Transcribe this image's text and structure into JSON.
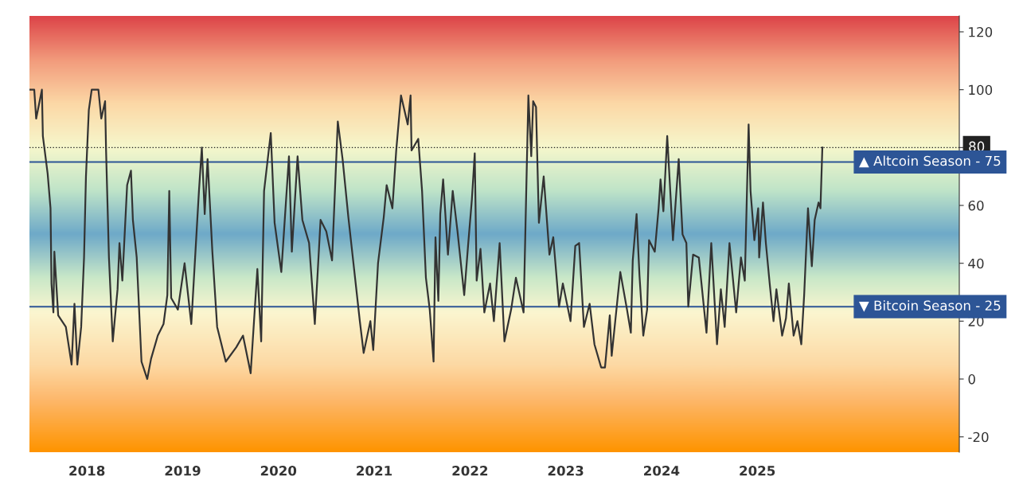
{
  "chart_data": {
    "type": "line",
    "series": [
      {
        "color": "#333333",
        "x": [
          2017.4,
          2017.45,
          2017.47,
          2017.53,
          2017.54,
          2017.59,
          2017.62,
          2017.63,
          2017.65,
          2017.66,
          2017.7,
          2017.78,
          2017.84,
          2017.87,
          2017.9,
          2017.94,
          2017.97,
          2017.99,
          2018.02,
          2018.05,
          2018.12,
          2018.15,
          2018.19,
          2018.2,
          2018.23,
          2018.27,
          2018.32,
          2018.34,
          2018.37,
          2018.42,
          2018.46,
          2018.48,
          2018.52,
          2018.57,
          2018.63,
          2018.67,
          2018.74,
          2018.8,
          2018.84,
          2018.86,
          2018.88,
          2018.95,
          2019.02,
          2019.09,
          2019.13,
          2019.17,
          2019.2,
          2019.23,
          2019.26,
          2019.31,
          2019.36,
          2019.45,
          2019.56,
          2019.63,
          2019.71,
          2019.78,
          2019.82,
          2019.85,
          2019.92,
          2019.96,
          2020.03,
          2020.11,
          2020.14,
          2020.2,
          2020.25,
          2020.32,
          2020.38,
          2020.44,
          2020.5,
          2020.56,
          2020.62,
          2020.67,
          2020.73,
          2020.79,
          2020.85,
          2020.89,
          2020.96,
          2020.99,
          2021.04,
          2021.1,
          2021.13,
          2021.19,
          2021.23,
          2021.28,
          2021.35,
          2021.38,
          2021.39,
          2021.46,
          2021.5,
          2021.54,
          2021.58,
          2021.62,
          2021.64,
          2021.67,
          2021.69,
          2021.72,
          2021.77,
          2021.82,
          2021.87,
          2021.94,
          2021.98,
          2022.02,
          2022.05,
          2022.07,
          2022.11,
          2022.15,
          2022.21,
          2022.25,
          2022.31,
          2022.36,
          2022.43,
          2022.48,
          2022.56,
          2022.58,
          2022.61,
          2022.64,
          2022.66,
          2022.69,
          2022.72,
          2022.77,
          2022.83,
          2022.87,
          2022.93,
          2022.97,
          2023.05,
          2023.1,
          2023.14,
          2023.19,
          2023.25,
          2023.3,
          2023.37,
          2023.41,
          2023.46,
          2023.48,
          2023.57,
          2023.64,
          2023.68,
          2023.7,
          2023.74,
          2023.77,
          2023.81,
          2023.85,
          2023.87,
          2023.93,
          2023.97,
          2023.99,
          2024.02,
          2024.06,
          2024.12,
          2024.18,
          2024.22,
          2024.26,
          2024.28,
          2024.33,
          2024.39,
          2024.47,
          2024.52,
          2024.58,
          2024.62,
          2024.66,
          2024.71,
          2024.78,
          2024.83,
          2024.87,
          2024.91,
          2024.93,
          2024.97,
          2025.01,
          2025.02,
          2025.06,
          2025.09,
          2025.13,
          2025.17,
          2025.2,
          2025.26,
          2025.3,
          2025.33,
          2025.38,
          2025.42,
          2025.46,
          2025.49,
          2025.53,
          2025.57,
          2025.6,
          2025.64,
          2025.66,
          2025.68
        ],
        "values": [
          100,
          100,
          90,
          100,
          84,
          71,
          59,
          33,
          23,
          44,
          22,
          18,
          5,
          26,
          5,
          18,
          42,
          70,
          93,
          100,
          100,
          90,
          96,
          79,
          42,
          13,
          31,
          47,
          34,
          67,
          72,
          55,
          42,
          6,
          0,
          7,
          15,
          19,
          29,
          65,
          28,
          24,
          40,
          19,
          42,
          65,
          80,
          57,
          76,
          44,
          18,
          6,
          11,
          15,
          2,
          38,
          13,
          65,
          85,
          54,
          37,
          77,
          44,
          77,
          55,
          47,
          19,
          55,
          51,
          41,
          89,
          76,
          56,
          38,
          20,
          9,
          20,
          10,
          40,
          56,
          67,
          59,
          79,
          98,
          88,
          98,
          79,
          83,
          65,
          35,
          24,
          6,
          49,
          27,
          57,
          69,
          43,
          65,
          51,
          29,
          46,
          62,
          78,
          34,
          45,
          23,
          33,
          20,
          47,
          13,
          24,
          35,
          23,
          53,
          98,
          77,
          96,
          94,
          54,
          70,
          43,
          49,
          25,
          33,
          20,
          46,
          47,
          18,
          26,
          12,
          4,
          4,
          22,
          8,
          37,
          24,
          16,
          41,
          57,
          36,
          15,
          24,
          48,
          44,
          59,
          69,
          58,
          84,
          48,
          76,
          50,
          47,
          25,
          43,
          42,
          16,
          47,
          12,
          31,
          18,
          47,
          23,
          42,
          34,
          88,
          65,
          48,
          59,
          42,
          61,
          47,
          33,
          20,
          31,
          15,
          21,
          33,
          15,
          20,
          12,
          29,
          59,
          39,
          55,
          61,
          59,
          80
        ]
      }
    ],
    "xlim": [
      2017.4,
      2027.11
    ],
    "xticks": [
      2018,
      2019,
      2020,
      2021,
      2022,
      2023,
      2024,
      2025
    ],
    "ylim": [
      -25.3,
      125.5
    ],
    "yticks": [
      -20,
      0,
      20,
      40,
      60,
      80,
      100,
      120
    ],
    "ref_lines": [
      {
        "axis": "y",
        "value": 80,
        "label": null,
        "color": "#222222",
        "line_style": "dotted"
      },
      {
        "axis": "y",
        "value": 75,
        "label": "▲ Altcoin Season - 75",
        "color": "#2d5596",
        "line_style": "solid"
      },
      {
        "axis": "y",
        "value": 25,
        "label": "▼ Bitcoin Season - 25",
        "color": "#2d5596",
        "line_style": "solid"
      }
    ],
    "grid": false,
    "legend": false,
    "marker": "none",
    "line_style": "solid"
  }
}
